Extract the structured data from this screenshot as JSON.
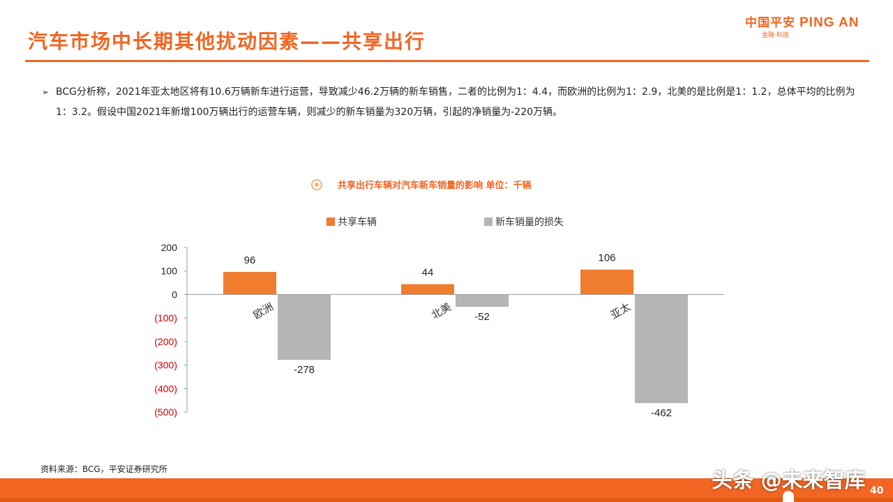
{
  "header": {
    "title": "汽车市场中长期其他扰动因素——共享出行",
    "logo_cn": "中国平安",
    "logo_en": "PING AN",
    "logo_sub": "金融·科技"
  },
  "bullet": {
    "marker": "➢",
    "text": "BCG分析称，2021年亚太地区将有10.6万辆新车进行运营，导致减少46.2万辆的新车销售，二者的比例为1：4.4，而欧洲的比例为1：2.9，北美的是比例是1：1.2，总体平均的比例为1：3.2。假设中国2021年新增100万辆出行的运营车辆，则减少的新车销量为320万辆，引起的净销量为-220万辆。"
  },
  "chart_caption": "共享出行车辆对汽车新车销量的影响 单位：千辆",
  "chart_data": {
    "type": "bar",
    "title": "",
    "categories": [
      "欧洲",
      "北美",
      "亚太"
    ],
    "series": [
      {
        "name": "共享车辆",
        "values": [
          96,
          44,
          106
        ],
        "color": "#f07c2e"
      },
      {
        "name": "新车销量的损失",
        "values": [
          -278,
          -52,
          -462
        ],
        "color": "#b5b5b5"
      }
    ],
    "data_labels": {
      "series_0": [
        "96",
        "44",
        "106"
      ],
      "series_1": [
        "-278",
        "-52",
        "-462"
      ]
    },
    "ylim": [
      -500,
      200
    ],
    "yticks": [
      200,
      100,
      0,
      -100,
      -200,
      -300,
      -400,
      -500
    ],
    "ytick_labels": [
      "200",
      "100",
      "0",
      "(100)",
      "(200)",
      "(300)",
      "(400)",
      "(500)"
    ],
    "negative_tick_color": "#cc0000",
    "legend_position": "top",
    "grid": false
  },
  "source": "资料来源：BCG，平安证券研究所",
  "watermark": "头条 @未来智库",
  "page_number": "40",
  "colors": {
    "accent": "#f26522"
  }
}
